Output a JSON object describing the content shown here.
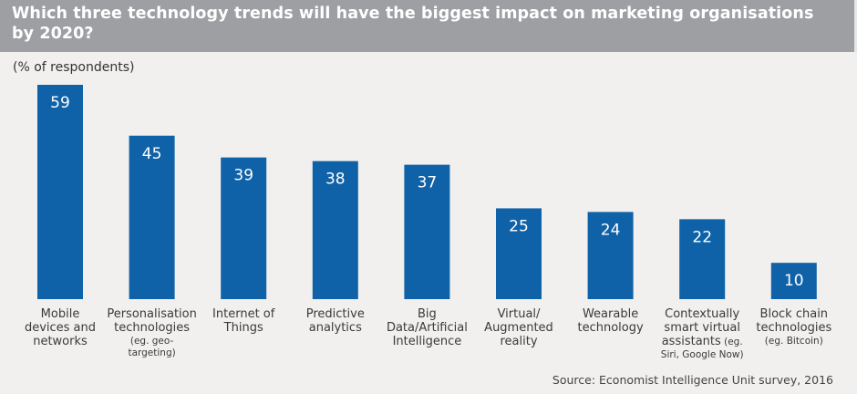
{
  "chart_data": {
    "type": "bar",
    "title": "Which three technology trends will have the biggest impact on marketing organisations by 2020?",
    "title_lines": [
      "Which three technology trends will have the biggest impact on marketing organisations",
      "by 2020?"
    ],
    "ylabel": "(% of respondents)",
    "xlabel": "",
    "ylim": [
      0,
      59
    ],
    "grid": false,
    "legend": "none",
    "bar_color": "#0f62a8",
    "categories": [
      "Mobile devices and networks",
      "Personalisation technologies (eg. geo-targeting)",
      "Internet of Things",
      "Predictive analytics",
      "Big Data/Artificial Intelligence",
      "Virtual/ Augmented reality",
      "Wearable technology",
      "Contextually smart virtual assistants (eg. Siri, Google Now)",
      "Block chain technologies (eg. Bitcoin)"
    ],
    "category_lines": [
      {
        "main": [
          "Mobile",
          "devices and",
          "networks"
        ],
        "small": []
      },
      {
        "main": [
          "Personalisation",
          "technologies"
        ],
        "small": [
          "(eg. geo-",
          "targeting)"
        ]
      },
      {
        "main": [
          "Internet of",
          "Things"
        ],
        "small": []
      },
      {
        "main": [
          "Predictive",
          "analytics"
        ],
        "small": []
      },
      {
        "main": [
          "Big",
          "Data/Artificial",
          "Intelligence"
        ],
        "small": []
      },
      {
        "main": [
          "Virtual/",
          "Augmented",
          "reality"
        ],
        "small": []
      },
      {
        "main": [
          "Wearable",
          "technology"
        ],
        "small": []
      },
      {
        "main": [
          "Contextually",
          "smart virtual",
          "assistants"
        ],
        "small_inline": "(eg.",
        "small": [
          "Siri, Google Now)"
        ]
      },
      {
        "main": [
          "Block chain",
          "technologies"
        ],
        "small": [
          "(eg. Bitcoin)"
        ]
      }
    ],
    "values": [
      59,
      45,
      39,
      38,
      37,
      25,
      24,
      22,
      10
    ],
    "source": "Source: Economist Intelligence Unit survey, 2016"
  }
}
